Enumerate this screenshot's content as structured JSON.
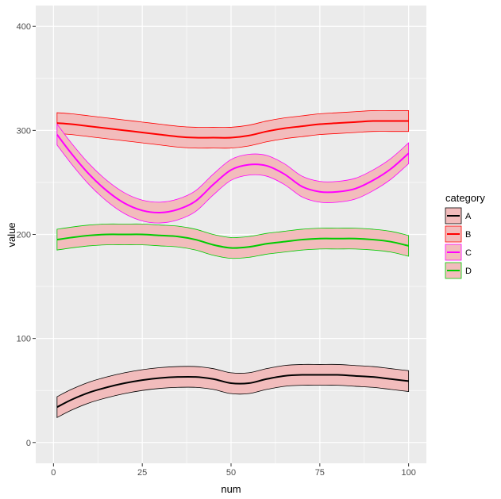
{
  "chart_data": {
    "type": "line",
    "title": "",
    "xlabel": "num",
    "ylabel": "value",
    "xlim": [
      -5,
      105
    ],
    "ylim": [
      -20,
      420
    ],
    "xticks": [
      0,
      25,
      50,
      75,
      100
    ],
    "yticks": [
      0,
      100,
      200,
      300,
      400
    ],
    "xtick_labels": [
      "0",
      "25",
      "50",
      "75",
      "100"
    ],
    "ytick_labels": [
      "0",
      "100",
      "200",
      "300",
      "400"
    ],
    "legend": {
      "title": "category",
      "position": "right"
    },
    "band_fill": "#f2bcbc",
    "panel_bg": "#ebebeb",
    "grid": true,
    "series": [
      {
        "name": "A",
        "color": "#000000",
        "band_halfwidth": 10,
        "x": [
          1,
          5,
          10,
          15,
          20,
          25,
          30,
          35,
          40,
          45,
          50,
          55,
          60,
          65,
          70,
          75,
          80,
          85,
          90,
          95,
          100
        ],
        "values": [
          34,
          41,
          48,
          53,
          57,
          60,
          62,
          63,
          63,
          61,
          57,
          57,
          61,
          64,
          65,
          65,
          65,
          64,
          63,
          61,
          59
        ]
      },
      {
        "name": "B",
        "color": "#ff0000",
        "band_halfwidth": 10,
        "x": [
          1,
          5,
          10,
          15,
          20,
          25,
          30,
          35,
          40,
          45,
          50,
          55,
          60,
          65,
          70,
          75,
          80,
          85,
          90,
          95,
          100
        ],
        "values": [
          307,
          306,
          304,
          302,
          300,
          298,
          296,
          294,
          293,
          293,
          293,
          295,
          299,
          302,
          304,
          306,
          307,
          308,
          309,
          309,
          309
        ]
      },
      {
        "name": "C",
        "color": "#ff00ff",
        "band_halfwidth": 10,
        "x": [
          1,
          5,
          10,
          15,
          20,
          25,
          30,
          35,
          40,
          45,
          50,
          55,
          60,
          65,
          70,
          75,
          80,
          85,
          90,
          95,
          100
        ],
        "values": [
          296,
          278,
          258,
          242,
          230,
          223,
          221,
          224,
          232,
          248,
          262,
          267,
          266,
          258,
          246,
          241,
          241,
          244,
          252,
          263,
          278
        ]
      },
      {
        "name": "D",
        "color": "#00cc00",
        "band_halfwidth": 10,
        "x": [
          1,
          5,
          10,
          15,
          20,
          25,
          30,
          35,
          40,
          45,
          50,
          55,
          60,
          65,
          70,
          75,
          80,
          85,
          90,
          95,
          100
        ],
        "values": [
          195,
          197,
          199,
          200,
          200,
          200,
          199,
          198,
          195,
          190,
          187,
          188,
          191,
          193,
          195,
          196,
          196,
          196,
          195,
          193,
          189
        ]
      }
    ]
  }
}
